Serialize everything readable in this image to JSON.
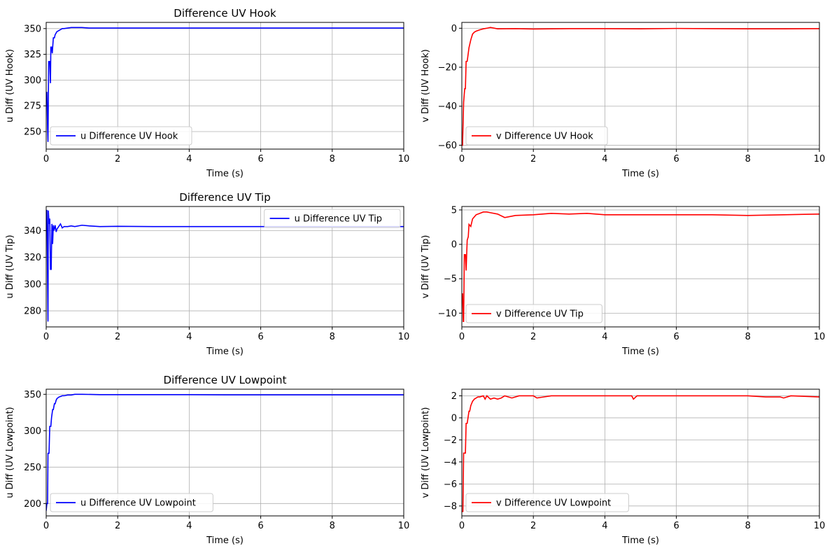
{
  "chart_data": [
    {
      "type": "line",
      "title": "Difference UV Hook",
      "xlabel": "Time (s)",
      "ylabel": "u Diff (UV Hook)",
      "xlim": [
        0,
        10
      ],
      "ylim": [
        233,
        356
      ],
      "xticks": [
        0,
        2,
        4,
        6,
        8,
        10
      ],
      "yticks": [
        250,
        275,
        300,
        325,
        350
      ],
      "grid": true,
      "legend_position": "lower-left",
      "series": [
        {
          "name": "u Difference UV Hook",
          "color": "#0000ff",
          "x": [
            0.0,
            0.02,
            0.04,
            0.05,
            0.07,
            0.08,
            0.1,
            0.12,
            0.13,
            0.15,
            0.17,
            0.2,
            0.23,
            0.25,
            0.3,
            0.35,
            0.4,
            0.45,
            0.5,
            0.6,
            0.7,
            0.8,
            1.0,
            1.2,
            1.5,
            2.0,
            2.5,
            3.0,
            4.0,
            5.0,
            6.0,
            7.0,
            8.0,
            9.0,
            10.0
          ],
          "y": [
            288,
            288,
            252,
            240,
            318,
            318,
            318,
            297,
            332,
            332,
            326,
            341,
            341,
            344,
            347,
            348,
            349,
            350,
            350,
            350.5,
            351,
            351,
            351,
            350.5,
            350.5,
            350.5,
            350.5,
            350.5,
            350.5,
            350.5,
            350.5,
            350.5,
            350.5,
            350.5,
            350.5
          ]
        }
      ]
    },
    {
      "type": "line",
      "title": "",
      "xlabel": "Time (s)",
      "ylabel": "v Diff (UV Hook)",
      "xlim": [
        0,
        10
      ],
      "ylim": [
        -62,
        3
      ],
      "xticks": [
        0,
        2,
        4,
        6,
        8,
        10
      ],
      "yticks": [
        -60,
        -40,
        -20,
        0
      ],
      "grid": true,
      "legend_position": "lower-left",
      "series": [
        {
          "name": "v Difference UV Hook",
          "color": "#ff0000",
          "x": [
            0.0,
            0.02,
            0.05,
            0.08,
            0.1,
            0.12,
            0.15,
            0.2,
            0.25,
            0.3,
            0.35,
            0.4,
            0.5,
            0.6,
            0.7,
            0.8,
            1.0,
            1.5,
            2.0,
            2.5,
            3.0,
            4.0,
            5.0,
            6.0,
            7.0,
            8.0,
            9.0,
            10.0
          ],
          "y": [
            -60,
            -60,
            -38,
            -31,
            -31,
            -17,
            -17,
            -10,
            -6,
            -3,
            -2,
            -1.5,
            -0.8,
            -0.3,
            0,
            0.4,
            -0.3,
            -0.2,
            -0.4,
            -0.3,
            -0.2,
            -0.2,
            -0.3,
            -0.1,
            -0.2,
            -0.3,
            -0.3,
            -0.2
          ]
        }
      ]
    },
    {
      "type": "line",
      "title": "Difference UV Tip",
      "xlabel": "Time (s)",
      "ylabel": "u Diff (UV Tip)",
      "xlim": [
        0,
        10
      ],
      "ylim": [
        268,
        358
      ],
      "xticks": [
        0,
        2,
        4,
        6,
        8,
        10
      ],
      "yticks": [
        280,
        300,
        320,
        340
      ],
      "grid": true,
      "legend_position": "upper-right",
      "series": [
        {
          "name": "u Difference UV Tip",
          "color": "#0000ff",
          "x": [
            0.0,
            0.02,
            0.04,
            0.05,
            0.06,
            0.08,
            0.1,
            0.12,
            0.14,
            0.16,
            0.18,
            0.2,
            0.22,
            0.25,
            0.28,
            0.3,
            0.35,
            0.4,
            0.45,
            0.5,
            0.6,
            0.7,
            0.8,
            1.0,
            1.2,
            1.5,
            2.0,
            3.0,
            4.0,
            5.0,
            6.0,
            7.0,
            8.0,
            9.0,
            10.0
          ],
          "y": [
            355,
            355,
            300,
            272,
            355,
            345,
            349,
            311,
            311,
            345,
            330,
            344,
            340,
            344,
            339,
            341,
            343,
            345,
            342,
            343,
            343,
            343.5,
            343,
            344,
            343.5,
            343,
            343.2,
            343,
            343,
            343,
            343,
            343,
            343,
            343,
            343
          ]
        }
      ]
    },
    {
      "type": "line",
      "title": "",
      "xlabel": "Time (s)",
      "ylabel": "v Diff (UV Tip)",
      "xlim": [
        0,
        10
      ],
      "ylim": [
        -12,
        5.5
      ],
      "xticks": [
        0,
        2,
        4,
        6,
        8,
        10
      ],
      "yticks": [
        -10,
        -5,
        0,
        5
      ],
      "grid": true,
      "legend_position": "lower-left",
      "series": [
        {
          "name": "v Difference UV Tip",
          "color": "#ff0000",
          "x": [
            0.0,
            0.02,
            0.04,
            0.05,
            0.07,
            0.1,
            0.12,
            0.15,
            0.18,
            0.2,
            0.25,
            0.3,
            0.35,
            0.4,
            0.5,
            0.6,
            0.7,
            0.8,
            1.0,
            1.2,
            1.5,
            2.0,
            2.5,
            3.0,
            3.5,
            4.0,
            5.0,
            6.0,
            7.0,
            8.0,
            9.0,
            10.0
          ],
          "y": [
            -7.2,
            -7.2,
            -11.2,
            -11.2,
            -1.5,
            -1.5,
            -3.8,
            0.6,
            1.1,
            2.9,
            2.6,
            3.7,
            4.0,
            4.3,
            4.5,
            4.7,
            4.7,
            4.6,
            4.4,
            3.9,
            4.2,
            4.3,
            4.5,
            4.4,
            4.5,
            4.3,
            4.3,
            4.3,
            4.3,
            4.2,
            4.3,
            4.4
          ]
        }
      ]
    },
    {
      "type": "line",
      "title": "Difference UV Lowpoint",
      "xlabel": "Time (s)",
      "ylabel": "u Diff (UV Lowpoint)",
      "xlim": [
        0,
        10
      ],
      "ylim": [
        183,
        357
      ],
      "xticks": [
        0,
        2,
        4,
        6,
        8,
        10
      ],
      "yticks": [
        200,
        250,
        300,
        350
      ],
      "grid": true,
      "legend_position": "lower-left",
      "series": [
        {
          "name": "u Difference UV Lowpoint",
          "color": "#0000ff",
          "x": [
            0.0,
            0.02,
            0.04,
            0.05,
            0.08,
            0.1,
            0.13,
            0.15,
            0.18,
            0.2,
            0.23,
            0.25,
            0.28,
            0.3,
            0.35,
            0.4,
            0.45,
            0.5,
            0.6,
            0.7,
            0.8,
            1.0,
            1.5,
            2.0,
            3.0,
            4.0,
            5.0,
            6.0,
            7.0,
            8.0,
            9.0,
            10.0
          ],
          "y": [
            190,
            200,
            200,
            269,
            269,
            306,
            306,
            318,
            329,
            329,
            337,
            337,
            342,
            344,
            346,
            347,
            348,
            348,
            349,
            349,
            350,
            350,
            349.5,
            349.5,
            349.5,
            349.5,
            349.2,
            349.2,
            349.2,
            349.2,
            349.2,
            349.2
          ]
        }
      ]
    },
    {
      "type": "line",
      "title": "",
      "xlabel": "Time (s)",
      "ylabel": "v Diff (UV Lowpoint)",
      "xlim": [
        0,
        10
      ],
      "ylim": [
        -8.9,
        2.6
      ],
      "xticks": [
        0,
        2,
        4,
        6,
        8,
        10
      ],
      "yticks": [
        -8,
        -6,
        -4,
        -2,
        0,
        2
      ],
      "grid": true,
      "legend_position": "lower-left",
      "series": [
        {
          "name": "v Difference UV Lowpoint",
          "color": "#ff0000",
          "x": [
            0.0,
            0.03,
            0.05,
            0.07,
            0.1,
            0.12,
            0.15,
            0.2,
            0.22,
            0.25,
            0.3,
            0.35,
            0.4,
            0.45,
            0.5,
            0.6,
            0.65,
            0.7,
            0.8,
            0.9,
            1.0,
            1.1,
            1.2,
            1.4,
            1.6,
            1.8,
            2.0,
            2.1,
            2.3,
            2.5,
            3.0,
            3.5,
            4.0,
            4.5,
            4.75,
            4.8,
            4.9,
            5.5,
            6.0,
            7.0,
            8.0,
            8.5,
            8.9,
            9.0,
            9.2,
            10.0
          ],
          "y": [
            -8.5,
            -8.5,
            -3.2,
            -3.2,
            -3.2,
            -0.5,
            -0.5,
            0.6,
            0.6,
            1.1,
            1.5,
            1.7,
            1.8,
            1.9,
            1.9,
            2.0,
            1.7,
            2.0,
            1.7,
            1.8,
            1.7,
            1.8,
            2.0,
            1.8,
            2.0,
            2.0,
            2.0,
            1.8,
            1.9,
            2.0,
            2.0,
            2.0,
            2.0,
            2.0,
            2.0,
            1.7,
            2.0,
            2.0,
            2.0,
            2.0,
            2.0,
            1.9,
            1.9,
            1.8,
            2.0,
            1.9
          ]
        }
      ]
    }
  ]
}
